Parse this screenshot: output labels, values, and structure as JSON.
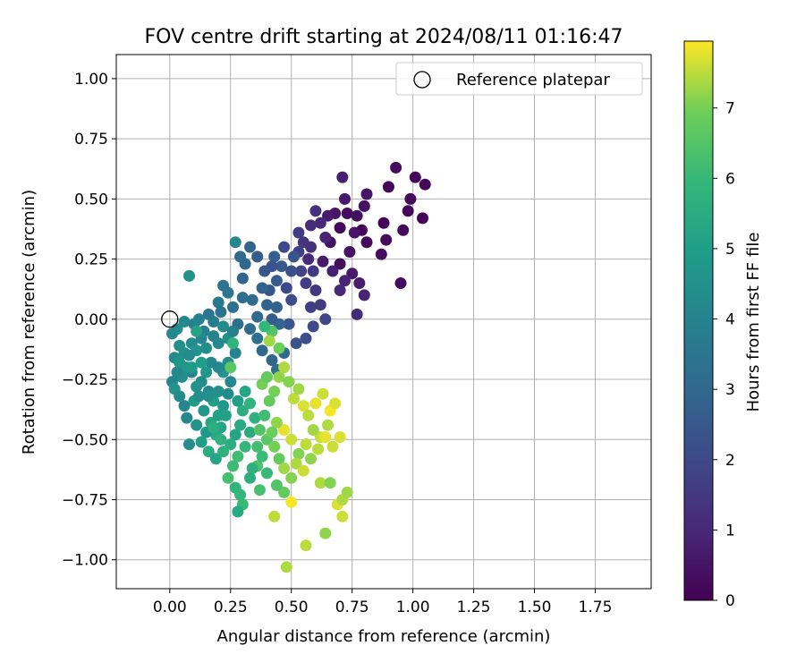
{
  "chart_data": {
    "type": "scatter",
    "title": "FOV centre drift starting at 2024/08/11 01:16:47",
    "xlabel": "Angular distance from reference (arcmin)",
    "ylabel": "Rotation from reference (arcmin)",
    "xlim": [
      -0.22,
      1.98
    ],
    "ylim": [
      -1.12,
      1.1
    ],
    "xticks": [
      0.0,
      0.25,
      0.5,
      0.75,
      1.0,
      1.25,
      1.5,
      1.75
    ],
    "xtick_labels": [
      "0.00",
      "0.25",
      "0.50",
      "0.75",
      "1.00",
      "1.25",
      "1.50",
      "1.75"
    ],
    "yticks": [
      1.0,
      0.75,
      0.5,
      0.25,
      0.0,
      -0.25,
      -0.5,
      -0.75,
      -1.0
    ],
    "ytick_labels": [
      "1.00",
      "0.75",
      "0.50",
      "0.25",
      "0.00",
      "−0.25",
      "−0.50",
      "−0.75",
      "−1.00"
    ],
    "grid": true,
    "legend": {
      "position": "top-right",
      "entries": [
        "Reference platepar"
      ]
    },
    "reference_point": {
      "x": 0.0,
      "y": 0.0
    },
    "colorbar": {
      "label": "Hours from first FF file",
      "range": [
        0,
        7.95
      ],
      "ticks": [
        0,
        1,
        2,
        3,
        4,
        5,
        6,
        7
      ],
      "tick_labels": [
        "0",
        "1",
        "2",
        "3",
        "4",
        "5",
        "6",
        "7"
      ],
      "colormap": "viridis"
    },
    "points": [
      [
        1.05,
        0.56,
        0.1
      ],
      [
        1.01,
        0.59,
        0.2
      ],
      [
        0.93,
        0.63,
        0.3
      ],
      [
        0.99,
        0.5,
        0.2
      ],
      [
        1.04,
        0.42,
        0.1
      ],
      [
        0.98,
        0.45,
        0.15
      ],
      [
        0.9,
        0.55,
        0.05
      ],
      [
        0.96,
        0.37,
        0.2
      ],
      [
        0.95,
        0.15,
        0.3
      ],
      [
        0.88,
        0.4,
        0.1
      ],
      [
        0.89,
        0.33,
        0.25
      ],
      [
        0.87,
        0.27,
        0.3
      ],
      [
        0.81,
        0.32,
        0.2
      ],
      [
        0.79,
        0.37,
        0.15
      ],
      [
        0.8,
        0.47,
        0.4
      ],
      [
        0.77,
        0.43,
        0.35
      ],
      [
        0.81,
        0.52,
        0.5
      ],
      [
        0.72,
        0.5,
        0.6
      ],
      [
        0.73,
        0.44,
        0.3
      ],
      [
        0.7,
        0.38,
        0.2
      ],
      [
        0.71,
        0.59,
        0.8
      ],
      [
        0.68,
        0.44,
        0.5
      ],
      [
        0.65,
        0.43,
        0.7
      ],
      [
        0.66,
        0.32,
        0.35
      ],
      [
        0.7,
        0.23,
        0.25
      ],
      [
        0.74,
        0.28,
        0.45
      ],
      [
        0.76,
        0.36,
        0.5
      ],
      [
        0.75,
        0.19,
        0.6
      ],
      [
        0.78,
        0.15,
        0.7
      ],
      [
        0.8,
        0.1,
        0.9
      ],
      [
        0.77,
        0.02,
        1.1
      ],
      [
        0.72,
        0.16,
        0.9
      ],
      [
        0.7,
        0.12,
        1.0
      ],
      [
        0.67,
        0.2,
        0.8
      ],
      [
        0.63,
        0.24,
        0.7
      ],
      [
        0.64,
        0.34,
        0.9
      ],
      [
        0.62,
        0.4,
        1.0
      ],
      [
        0.6,
        0.45,
        1.2
      ],
      [
        0.58,
        0.39,
        1.1
      ],
      [
        0.58,
        0.3,
        1.3
      ],
      [
        0.59,
        0.2,
        1.5
      ],
      [
        0.57,
        0.25,
        1.0
      ],
      [
        0.55,
        0.32,
        1.4
      ],
      [
        0.53,
        0.36,
        1.6
      ],
      [
        0.53,
        0.28,
        1.7
      ],
      [
        0.54,
        0.2,
        1.8
      ],
      [
        0.56,
        0.15,
        1.6
      ],
      [
        0.6,
        0.12,
        1.4
      ],
      [
        0.58,
        0.05,
        1.7
      ],
      [
        0.62,
        0.06,
        1.5
      ],
      [
        0.64,
        0.0,
        1.9
      ],
      [
        0.59,
        -0.03,
        2.0
      ],
      [
        0.56,
        -0.08,
        2.2
      ],
      [
        0.52,
        -0.1,
        2.3
      ],
      [
        0.49,
        -0.02,
        2.4
      ],
      [
        0.5,
        0.08,
        2.1
      ],
      [
        0.48,
        0.13,
        2.0
      ],
      [
        0.5,
        0.2,
        2.2
      ],
      [
        0.51,
        0.26,
        2.4
      ],
      [
        0.46,
        0.22,
        2.5
      ],
      [
        0.47,
        0.3,
        2.0
      ],
      [
        0.43,
        0.26,
        2.7
      ],
      [
        0.42,
        0.22,
        2.3
      ],
      [
        0.44,
        0.16,
        2.6
      ],
      [
        0.41,
        0.12,
        2.4
      ],
      [
        0.44,
        0.05,
        2.8
      ],
      [
        0.45,
        -0.02,
        2.9
      ],
      [
        0.42,
        0.0,
        2.6
      ],
      [
        0.4,
        0.06,
        2.9
      ],
      [
        0.38,
        0.13,
        2.8
      ],
      [
        0.39,
        0.2,
        2.4
      ],
      [
        0.36,
        0.26,
        2.6
      ],
      [
        0.33,
        0.3,
        2.9
      ],
      [
        0.31,
        0.23,
        3.0
      ],
      [
        0.29,
        0.26,
        3.1
      ],
      [
        0.27,
        0.32,
        4.2
      ],
      [
        0.3,
        0.17,
        2.9
      ],
      [
        0.34,
        0.08,
        3.1
      ],
      [
        0.36,
        0.01,
        3.0
      ],
      [
        0.33,
        -0.04,
        3.1
      ],
      [
        0.36,
        -0.08,
        3.3
      ],
      [
        0.38,
        -0.13,
        3.0
      ],
      [
        0.42,
        -0.17,
        2.9
      ],
      [
        0.44,
        -0.21,
        3.2
      ],
      [
        0.47,
        -0.14,
        3.0
      ],
      [
        0.3,
        0.09,
        3.2
      ],
      [
        0.28,
        -0.02,
        3.3
      ],
      [
        0.26,
        0.05,
        3.3
      ],
      [
        0.24,
        0.11,
        3.5
      ],
      [
        0.22,
        0.14,
        3.4
      ],
      [
        0.2,
        0.07,
        3.6
      ],
      [
        0.21,
        0.03,
        3.4
      ],
      [
        0.18,
        -0.01,
        3.7
      ],
      [
        0.16,
        0.02,
        3.5
      ],
      [
        0.14,
        -0.05,
        3.8
      ],
      [
        0.12,
        0.0,
        3.9
      ],
      [
        0.1,
        -0.02,
        4.0
      ],
      [
        0.08,
        0.18,
        4.5
      ],
      [
        0.06,
        -0.01,
        4.2
      ],
      [
        0.03,
        -0.04,
        4.3
      ],
      [
        0.01,
        -0.06,
        4.1
      ],
      [
        0.04,
        -0.11,
        4.4
      ],
      [
        0.02,
        -0.16,
        4.2
      ],
      [
        0.06,
        -0.14,
        4.5
      ],
      [
        0.09,
        -0.1,
        4.3
      ],
      [
        0.11,
        -0.13,
        4.6
      ],
      [
        0.13,
        -0.08,
        4.1
      ],
      [
        0.15,
        -0.12,
        4.4
      ],
      [
        0.18,
        -0.07,
        4.0
      ],
      [
        0.2,
        -0.1,
        4.2
      ],
      [
        0.22,
        -0.03,
        4.3
      ],
      [
        0.24,
        -0.08,
        4.5
      ],
      [
        0.26,
        -0.05,
        3.9
      ],
      [
        0.27,
        -0.14,
        4.0
      ],
      [
        0.24,
        -0.18,
        4.4
      ],
      [
        0.22,
        -0.22,
        4.6
      ],
      [
        0.2,
        -0.2,
        4.2
      ],
      [
        0.17,
        -0.18,
        4.1
      ],
      [
        0.15,
        -0.22,
        4.7
      ],
      [
        0.13,
        -0.26,
        4.3
      ],
      [
        0.11,
        -0.28,
        4.5
      ],
      [
        0.09,
        -0.22,
        4.0
      ],
      [
        0.07,
        -0.2,
        4.8
      ],
      [
        0.05,
        -0.24,
        4.4
      ],
      [
        0.03,
        -0.22,
        4.2
      ],
      [
        0.01,
        -0.26,
        4.1
      ],
      [
        0.02,
        -0.29,
        4.6
      ],
      [
        0.04,
        -0.32,
        4.3
      ],
      [
        0.06,
        -0.36,
        4.1
      ],
      [
        0.1,
        -0.34,
        4.9
      ],
      [
        0.12,
        -0.32,
        4.4
      ],
      [
        0.14,
        -0.38,
        4.7
      ],
      [
        0.16,
        -0.3,
        4.2
      ],
      [
        0.18,
        -0.34,
        5.0
      ],
      [
        0.2,
        -0.3,
        4.5
      ],
      [
        0.22,
        -0.36,
        4.8
      ],
      [
        0.24,
        -0.31,
        4.3
      ],
      [
        0.25,
        -0.26,
        4.1
      ],
      [
        0.23,
        -0.4,
        5.1
      ],
      [
        0.21,
        -0.45,
        5.2
      ],
      [
        0.19,
        -0.48,
        5.4
      ],
      [
        0.17,
        -0.43,
        5.3
      ],
      [
        0.15,
        -0.47,
        4.8
      ],
      [
        0.13,
        -0.51,
        5.0
      ],
      [
        0.11,
        -0.44,
        4.6
      ],
      [
        0.08,
        -0.52,
        4.4
      ],
      [
        0.07,
        -0.41,
        4.2
      ],
      [
        0.16,
        -0.55,
        5.5
      ],
      [
        0.19,
        -0.58,
        5.3
      ],
      [
        0.22,
        -0.55,
        5.7
      ],
      [
        0.25,
        -0.52,
        5.6
      ],
      [
        0.27,
        -0.48,
        5.2
      ],
      [
        0.29,
        -0.44,
        5.4
      ],
      [
        0.3,
        -0.38,
        5.6
      ],
      [
        0.28,
        -0.34,
        5.0
      ],
      [
        0.31,
        -0.3,
        5.3
      ],
      [
        0.33,
        -0.35,
        5.8
      ],
      [
        0.35,
        -0.41,
        5.7
      ],
      [
        0.33,
        -0.47,
        5.5
      ],
      [
        0.31,
        -0.53,
        5.9
      ],
      [
        0.28,
        -0.57,
        6.2
      ],
      [
        0.26,
        -0.61,
        6.1
      ],
      [
        0.24,
        -0.66,
        6.3
      ],
      [
        0.27,
        -0.7,
        5.8
      ],
      [
        0.29,
        -0.73,
        5.9
      ],
      [
        0.3,
        -0.77,
        6.0
      ],
      [
        0.28,
        -0.8,
        5.4
      ],
      [
        0.33,
        -0.66,
        5.6
      ],
      [
        0.36,
        -0.61,
        6.4
      ],
      [
        0.38,
        -0.57,
        6.1
      ],
      [
        0.4,
        -0.5,
        6.6
      ],
      [
        0.37,
        -0.46,
        6.5
      ],
      [
        0.39,
        -0.4,
        6.2
      ],
      [
        0.41,
        -0.34,
        6.8
      ],
      [
        0.43,
        -0.3,
        7.0
      ],
      [
        0.45,
        -0.24,
        7.2
      ],
      [
        0.47,
        -0.2,
        7.4
      ],
      [
        0.49,
        -0.26,
        7.1
      ],
      [
        0.51,
        -0.33,
        7.5
      ],
      [
        0.53,
        -0.29,
        7.3
      ],
      [
        0.55,
        -0.36,
        7.7
      ],
      [
        0.57,
        -0.4,
        7.5
      ],
      [
        0.6,
        -0.35,
        7.8
      ],
      [
        0.63,
        -0.31,
        7.6
      ],
      [
        0.66,
        -0.38,
        7.9
      ],
      [
        0.68,
        -0.35,
        7.7
      ],
      [
        0.65,
        -0.44,
        7.4
      ],
      [
        0.62,
        -0.49,
        7.6
      ],
      [
        0.59,
        -0.46,
        7.3
      ],
      [
        0.56,
        -0.52,
        7.5
      ],
      [
        0.53,
        -0.56,
        7.1
      ],
      [
        0.5,
        -0.5,
        7.6
      ],
      [
        0.47,
        -0.46,
        7.8
      ],
      [
        0.44,
        -0.43,
        7.2
      ],
      [
        0.42,
        -0.47,
        6.9
      ],
      [
        0.43,
        -0.53,
        7.0
      ],
      [
        0.45,
        -0.58,
        6.8
      ],
      [
        0.47,
        -0.62,
        7.3
      ],
      [
        0.5,
        -0.66,
        7.1
      ],
      [
        0.52,
        -0.6,
        7.4
      ],
      [
        0.55,
        -0.63,
        7.6
      ],
      [
        0.58,
        -0.58,
        7.2
      ],
      [
        0.61,
        -0.54,
        7.5
      ],
      [
        0.64,
        -0.49,
        7.8
      ],
      [
        0.67,
        -0.53,
        7.6
      ],
      [
        0.7,
        -0.49,
        7.7
      ],
      [
        0.62,
        -0.68,
        7.4
      ],
      [
        0.66,
        -0.68,
        7.1
      ],
      [
        0.69,
        -0.77,
        7.7
      ],
      [
        0.71,
        -0.75,
        7.4
      ],
      [
        0.73,
        -0.72,
        7.3
      ],
      [
        0.71,
        -0.82,
        7.6
      ],
      [
        0.64,
        -0.89,
        7.2
      ],
      [
        0.56,
        -0.94,
        7.5
      ],
      [
        0.48,
        -1.03,
        7.4
      ],
      [
        0.5,
        -0.76,
        7.9
      ],
      [
        0.47,
        -0.72,
        6.8
      ],
      [
        0.44,
        -0.69,
        6.5
      ],
      [
        0.43,
        -0.82,
        7.5
      ],
      [
        0.4,
        -0.64,
        6.0
      ],
      [
        0.37,
        -0.71,
        6.3
      ],
      [
        0.34,
        -0.62,
        5.7
      ],
      [
        0.36,
        -0.53,
        6.2
      ],
      [
        0.38,
        -0.27,
        7.0
      ],
      [
        0.4,
        -0.24,
        6.8
      ],
      [
        0.42,
        -0.05,
        6.5
      ],
      [
        0.41,
        -0.09,
        7.3
      ],
      [
        0.45,
        -0.12,
        6.9
      ],
      [
        0.39,
        -0.03,
        5.9
      ],
      [
        0.26,
        -0.1,
        5.8
      ],
      [
        0.25,
        -0.2,
        6.6
      ],
      [
        0.18,
        -0.45,
        5.6
      ],
      [
        0.21,
        -0.5,
        5.7
      ],
      [
        0.09,
        -0.2,
        4.9
      ],
      [
        0.11,
        -0.05,
        5.2
      ],
      [
        0.04,
        -0.18,
        4.7
      ],
      [
        0.13,
        -0.18,
        5.0
      ],
      [
        0.08,
        -0.15,
        4.3
      ],
      [
        0.16,
        -0.32,
        4.5
      ],
      [
        0.2,
        -0.4,
        5.1
      ]
    ]
  }
}
